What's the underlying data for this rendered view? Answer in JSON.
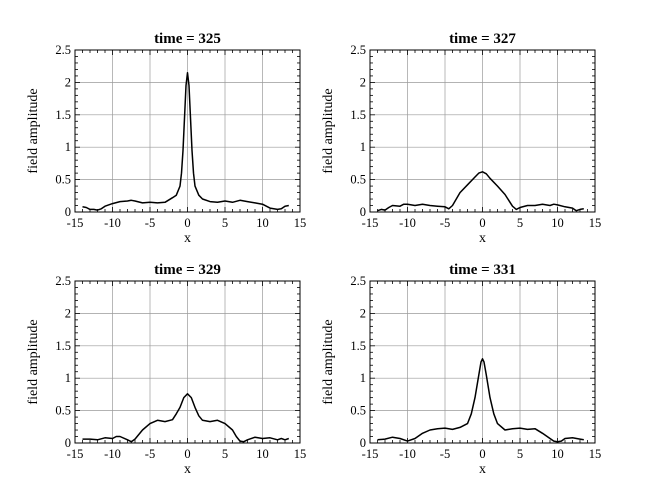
{
  "chart_data": [
    {
      "type": "line",
      "title": "time = 325",
      "xlabel": "x",
      "ylabel": "field amplitude",
      "xlim": [
        -15,
        15
      ],
      "ylim": [
        0,
        2.5
      ],
      "xticks": [
        "-15",
        "-10",
        "-5",
        "0",
        "5",
        "10",
        "15"
      ],
      "yticks": [
        "0",
        "0.5",
        "1",
        "1.5",
        "2",
        "2.5"
      ],
      "grid": true,
      "x": [
        -14,
        -13.5,
        -13,
        -12.5,
        -12,
        -11.5,
        -11,
        -10,
        -9,
        -8,
        -7.5,
        -7,
        -6,
        -5,
        -4,
        -3,
        -2,
        -1.5,
        -1,
        -0.8,
        -0.6,
        -0.4,
        -0.2,
        0,
        0.2,
        0.4,
        0.6,
        0.8,
        1,
        1.5,
        2,
        3,
        4,
        5,
        6,
        7,
        8,
        9,
        10,
        11,
        12,
        12.5,
        13,
        13.5
      ],
      "y": [
        0.08,
        0.07,
        0.04,
        0.04,
        0.03,
        0.05,
        0.09,
        0.13,
        0.16,
        0.17,
        0.18,
        0.17,
        0.14,
        0.15,
        0.14,
        0.15,
        0.22,
        0.26,
        0.4,
        0.6,
        0.95,
        1.45,
        1.95,
        2.15,
        1.95,
        1.45,
        0.95,
        0.6,
        0.4,
        0.26,
        0.2,
        0.16,
        0.15,
        0.17,
        0.15,
        0.18,
        0.16,
        0.14,
        0.12,
        0.06,
        0.04,
        0.05,
        0.09,
        0.1
      ]
    },
    {
      "type": "line",
      "title": "time = 327",
      "xlabel": "x",
      "ylabel": "field amplitude",
      "xlim": [
        -15,
        15
      ],
      "ylim": [
        0,
        2.5
      ],
      "xticks": [
        "-15",
        "-10",
        "-5",
        "0",
        "5",
        "10",
        "15"
      ],
      "yticks": [
        "0",
        "0.5",
        "1",
        "1.5",
        "2",
        "2.5"
      ],
      "grid": true,
      "x": [
        -14,
        -13.5,
        -13,
        -12.5,
        -12,
        -11,
        -10.5,
        -10,
        -9,
        -8,
        -7,
        -6,
        -5,
        -4.5,
        -4,
        -3,
        -2,
        -1,
        -0.5,
        0,
        0.5,
        1,
        2,
        3,
        4,
        4.5,
        5,
        6,
        7,
        8,
        9,
        9.5,
        10,
        11,
        12,
        12.5,
        13,
        13.5
      ],
      "y": [
        0.02,
        0.04,
        0.03,
        0.07,
        0.1,
        0.09,
        0.12,
        0.12,
        0.1,
        0.12,
        0.1,
        0.09,
        0.08,
        0.05,
        0.1,
        0.3,
        0.42,
        0.54,
        0.6,
        0.62,
        0.59,
        0.52,
        0.4,
        0.27,
        0.09,
        0.04,
        0.07,
        0.1,
        0.1,
        0.12,
        0.1,
        0.12,
        0.11,
        0.08,
        0.06,
        0.02,
        0.04,
        0.05
      ]
    },
    {
      "type": "line",
      "title": "time = 329",
      "xlabel": "x",
      "ylabel": "field amplitude",
      "xlim": [
        -15,
        15
      ],
      "ylim": [
        0,
        2.5
      ],
      "xticks": [
        "-15",
        "-10",
        "-5",
        "0",
        "5",
        "10",
        "15"
      ],
      "yticks": [
        "0",
        "0.5",
        "1",
        "1.5",
        "2",
        "2.5"
      ],
      "grid": true,
      "x": [
        -14,
        -13,
        -12,
        -11,
        -10,
        -9.5,
        -9,
        -8,
        -7.5,
        -7,
        -6,
        -5,
        -4,
        -3,
        -2,
        -1.5,
        -1,
        -0.5,
        0,
        0.5,
        1,
        1.5,
        2,
        3,
        4,
        5,
        6,
        6.5,
        7,
        7.5,
        8,
        9,
        10,
        11,
        12,
        12.5,
        13,
        13.5
      ],
      "y": [
        0.06,
        0.06,
        0.05,
        0.08,
        0.07,
        0.1,
        0.1,
        0.05,
        0.02,
        0.06,
        0.2,
        0.3,
        0.35,
        0.33,
        0.36,
        0.45,
        0.55,
        0.7,
        0.76,
        0.7,
        0.55,
        0.42,
        0.35,
        0.33,
        0.35,
        0.3,
        0.2,
        0.1,
        0.03,
        0.02,
        0.05,
        0.09,
        0.07,
        0.08,
        0.05,
        0.07,
        0.05,
        0.07
      ]
    },
    {
      "type": "line",
      "title": "time = 331",
      "xlabel": "x",
      "ylabel": "field amplitude",
      "xlim": [
        -15,
        15
      ],
      "ylim": [
        0,
        2.5
      ],
      "xticks": [
        "-15",
        "-10",
        "-5",
        "0",
        "5",
        "10",
        "15"
      ],
      "yticks": [
        "0",
        "0.5",
        "1",
        "1.5",
        "2",
        "2.5"
      ],
      "grid": true,
      "x": [
        -14,
        -13,
        -12,
        -11,
        -10,
        -9,
        -8,
        -7,
        -6,
        -5,
        -4,
        -3,
        -2,
        -1.5,
        -1,
        -0.5,
        -0.2,
        0,
        0.2,
        0.5,
        1,
        1.5,
        2,
        3,
        4,
        5,
        6,
        7,
        8,
        9,
        9.5,
        10,
        10.5,
        11,
        12,
        13,
        13.5
      ],
      "y": [
        0.05,
        0.06,
        0.09,
        0.07,
        0.03,
        0.07,
        0.15,
        0.2,
        0.22,
        0.23,
        0.21,
        0.24,
        0.3,
        0.45,
        0.7,
        1.05,
        1.25,
        1.3,
        1.25,
        1.05,
        0.7,
        0.45,
        0.3,
        0.2,
        0.22,
        0.23,
        0.21,
        0.22,
        0.15,
        0.07,
        0.03,
        0.02,
        0.03,
        0.07,
        0.08,
        0.06,
        0.05
      ]
    }
  ]
}
